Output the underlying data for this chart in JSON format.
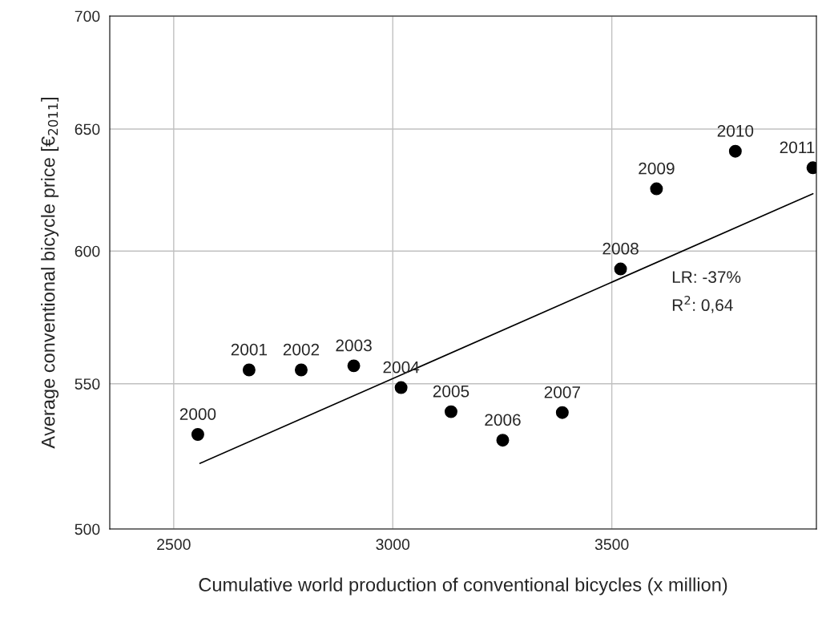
{
  "chart_data": {
    "type": "scatter",
    "xlabel": "Cumulative world production of conventional bicycles (x million)",
    "ylabel": "Average conventional bicycle price [€$_{2011}$]",
    "series": [
      {
        "color": "#000000",
        "marker": "circle",
        "x": [
          2555,
          2672,
          2791,
          2911,
          3019,
          3133,
          3251,
          3387,
          3520,
          3602,
          3782,
          3959
        ],
        "values": [
          532,
          555,
          555,
          556.5,
          548.6,
          540,
          530,
          539.7,
          593,
          625,
          640.6,
          633.7
        ]
      },
      {
        "type": "line",
        "color": "#000000",
        "marker": "none",
        "x": [
          2560,
          3959
        ],
        "values": [
          522,
          623
        ]
      }
    ],
    "annotations": [
      {
        "text": "2000",
        "x": 2555,
        "y": 532
      },
      {
        "text": "2001",
        "x": 2672,
        "y": 555
      },
      {
        "text": "2002",
        "x": 2791,
        "y": 555
      },
      {
        "text": "2003",
        "x": 2911,
        "y": 556.5
      },
      {
        "text": "2004",
        "x": 3019,
        "y": 548.6
      },
      {
        "text": "2005",
        "x": 3133,
        "y": 540
      },
      {
        "text": "2006",
        "x": 3251,
        "y": 530
      },
      {
        "text": "2007",
        "x": 3387,
        "y": 539.7
      },
      {
        "text": "2008",
        "x": 3520,
        "y": 593
      },
      {
        "text": "2009",
        "x": 3602,
        "y": 625
      },
      {
        "text": "2010",
        "x": 3782,
        "y": 640.6
      },
      {
        "text": "2011",
        "x": 3959,
        "y": 633.7
      },
      "LR: -37%",
      "R$^{2}$: 0,64"
    ],
    "log": "y",
    "xlim": [
      2354,
      3967
    ],
    "ylim": [
      500,
      700
    ],
    "xticks": [
      2500,
      3000,
      3500
    ],
    "yticks": [
      500,
      550,
      600,
      650,
      700
    ],
    "grid": true
  }
}
